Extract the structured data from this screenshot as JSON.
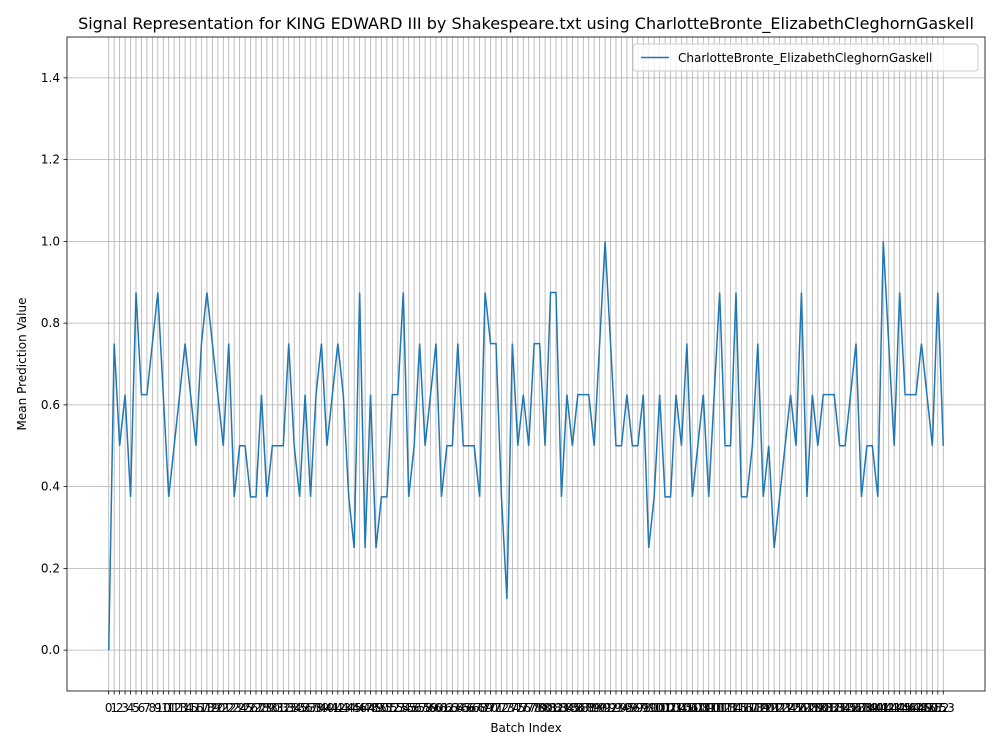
{
  "chart_data": {
    "type": "line",
    "title": "Signal Representation for KING EDWARD III by Shakespeare.txt using CharlotteBronte_ElizabethCleghornGaskell",
    "xlabel": "Batch Index",
    "ylabel": "Mean Prediction Value",
    "x": [
      0,
      1,
      2,
      3,
      4,
      5,
      6,
      7,
      8,
      9,
      10,
      11,
      12,
      13,
      14,
      15,
      16,
      17,
      18,
      19,
      20,
      21,
      22,
      23,
      24,
      25,
      26,
      27,
      28,
      29,
      30,
      31,
      32,
      33,
      34,
      35,
      36,
      37,
      38,
      39,
      40,
      41,
      42,
      43,
      44,
      45,
      46,
      47,
      48,
      49,
      50,
      51,
      52,
      53,
      54,
      55,
      56,
      57,
      58,
      59,
      60,
      61,
      62,
      63,
      64,
      65,
      66,
      67,
      68,
      69,
      70,
      71,
      72,
      73,
      74,
      75,
      76,
      77,
      78,
      79,
      80,
      81,
      82,
      83,
      84,
      85,
      86,
      87,
      88,
      89,
      90,
      91,
      92,
      93,
      94,
      95,
      96,
      97,
      98,
      99,
      100,
      101,
      102,
      103,
      104,
      105,
      106,
      107,
      108,
      109,
      110,
      111,
      112,
      113,
      114,
      115,
      116,
      117,
      118,
      119,
      120,
      121,
      122,
      123,
      124,
      125,
      126,
      127,
      128,
      129,
      130,
      131,
      132,
      133,
      134,
      135,
      136,
      137,
      138,
      139,
      140,
      141,
      142,
      143,
      144,
      145,
      146,
      147,
      148,
      149,
      150,
      151,
      152,
      153
    ],
    "series": [
      {
        "name": "CharlotteBronte_ElizabethCleghornGaskell",
        "color": "#1f77b4",
        "values": [
          0,
          0.75,
          0.5,
          0.625,
          0.375,
          0.875,
          0.625,
          0.625,
          0.75,
          0.875,
          0.625,
          0.375,
          0.5,
          0.625,
          0.75,
          0.625,
          0.5,
          0.75,
          0.875,
          0.75,
          0.625,
          0.5,
          0.75,
          0.375,
          0.5,
          0.5,
          0.375,
          0.375,
          0.625,
          0.375,
          0.5,
          0.5,
          0.5,
          0.75,
          0.5,
          0.375,
          0.625,
          0.375,
          0.625,
          0.75,
          0.5,
          0.625,
          0.75,
          0.625,
          0.375,
          0.25,
          0.875,
          0.25,
          0.625,
          0.25,
          0.375,
          0.375,
          0.625,
          0.625,
          0.875,
          0.375,
          0.5,
          0.75,
          0.5,
          0.625,
          0.75,
          0.375,
          0.5,
          0.5,
          0.75,
          0.5,
          0.5,
          0.5,
          0.375,
          0.875,
          0.75,
          0.75,
          0.375,
          0.125,
          0.75,
          0.5,
          0.625,
          0.5,
          0.75,
          0.75,
          0.5,
          0.875,
          0.875,
          0.375,
          0.625,
          0.5,
          0.625,
          0.625,
          0.625,
          0.5,
          0.75,
          1.0,
          0.75,
          0.5,
          0.5,
          0.625,
          0.5,
          0.5,
          0.625,
          0.25,
          0.375,
          0.625,
          0.375,
          0.375,
          0.625,
          0.5,
          0.75,
          0.375,
          0.5,
          0.625,
          0.375,
          0.625,
          0.875,
          0.5,
          0.5,
          0.875,
          0.375,
          0.375,
          0.5,
          0.75,
          0.375,
          0.5,
          0.25,
          0.375,
          0.5,
          0.625,
          0.5,
          0.875,
          0.375,
          0.625,
          0.5,
          0.625,
          0.625,
          0.625,
          0.5,
          0.5,
          0.625,
          0.75,
          0.375,
          0.5,
          0.5,
          0.375,
          1.0,
          0.75,
          0.5,
          0.875,
          0.625,
          0.625,
          0.625,
          0.75,
          0.625,
          0.5,
          0.875,
          0.5
        ]
      }
    ],
    "xlim": [
      -7.65,
      160.65
    ],
    "xticks": [
      0,
      1,
      2,
      3,
      4,
      5,
      6,
      7,
      8,
      9,
      10,
      11,
      12,
      13,
      14,
      15,
      16,
      17,
      18,
      19,
      20,
      21,
      22,
      23,
      24,
      25,
      26,
      27,
      28,
      29,
      30,
      31,
      32,
      33,
      34,
      35,
      36,
      37,
      38,
      39,
      40,
      41,
      42,
      43,
      44,
      45,
      46,
      47,
      48,
      49,
      50,
      51,
      52,
      53,
      54,
      55,
      56,
      57,
      58,
      59,
      60,
      61,
      62,
      63,
      64,
      65,
      66,
      67,
      68,
      69,
      70,
      71,
      72,
      73,
      74,
      75,
      76,
      77,
      78,
      79,
      80,
      81,
      82,
      83,
      84,
      85,
      86,
      87,
      88,
      89,
      90,
      91,
      92,
      93,
      94,
      95,
      96,
      97,
      98,
      99,
      100,
      101,
      102,
      103,
      104,
      105,
      106,
      107,
      108,
      109,
      110,
      111,
      112,
      113,
      114,
      115,
      116,
      117,
      118,
      119,
      120,
      121,
      122,
      123,
      124,
      125,
      126,
      127,
      128,
      129,
      130,
      131,
      132,
      133,
      134,
      135,
      136,
      137,
      138,
      139,
      140,
      141,
      142,
      143,
      144,
      145,
      146,
      147,
      148,
      149,
      150,
      151,
      152,
      153
    ],
    "ylim": [
      -0.1,
      1.5
    ],
    "yticks": [
      {
        "value": 0,
        "label": "0.0"
      },
      0.2,
      0.4,
      0.6,
      0.8,
      {
        "value": 1,
        "label": "1.0"
      },
      1.2,
      1.4
    ],
    "grid": true,
    "legend": "upper right"
  }
}
